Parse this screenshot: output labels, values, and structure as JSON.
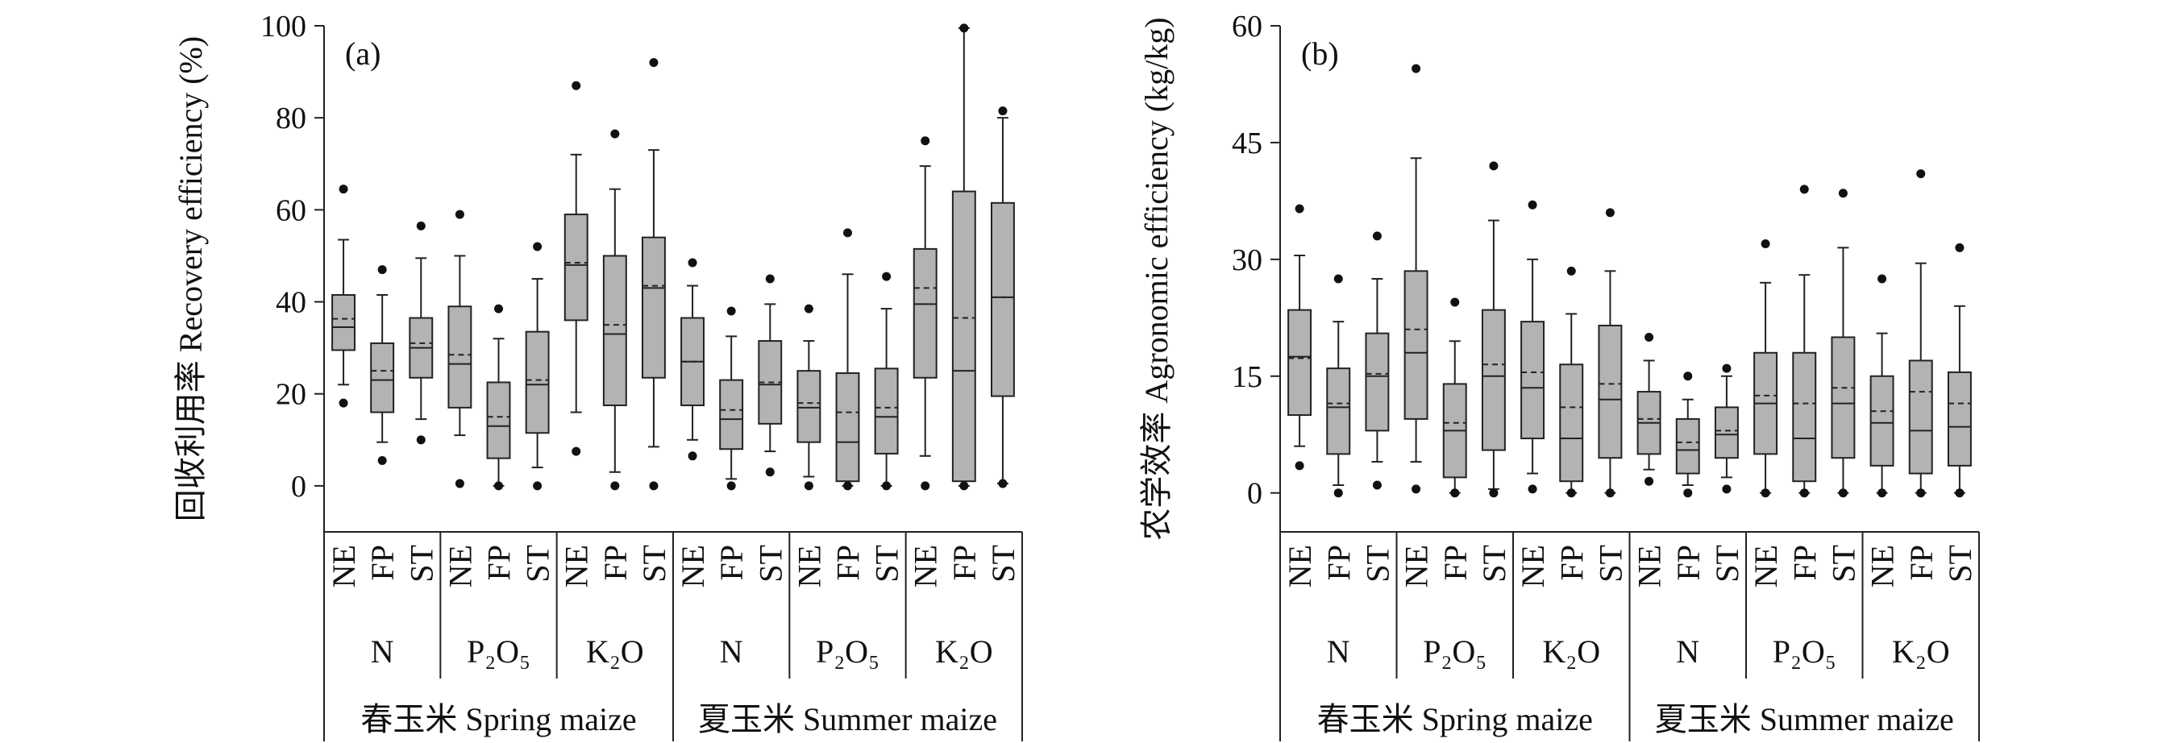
{
  "chart_data": [
    {
      "type": "box",
      "panel_label": "(a)",
      "ylabel": "回收利用率 Recovery efficiency (%)",
      "ylim": [
        -10,
        100
      ],
      "yticks": [
        0,
        20,
        40,
        60,
        80,
        100
      ],
      "treatments": [
        "NE",
        "FP",
        "ST"
      ],
      "groups": [
        "N",
        "P₂O₅",
        "K₂O",
        "N",
        "P₂O₅",
        "K₂O"
      ],
      "crops": [
        {
          "label": "春玉米 Spring maize",
          "span": [
            0,
            2
          ]
        },
        {
          "label": "夏玉米 Summer maize",
          "span": [
            3,
            5
          ]
        }
      ],
      "boxes": [
        {
          "group": 0,
          "treatment": "NE",
          "whisker_low": 22,
          "q1": 29.5,
          "median": 34.5,
          "mean": 36.3,
          "q3": 41.5,
          "whisker_high": 53.5,
          "outliers": [
            18,
            64.5
          ]
        },
        {
          "group": 0,
          "treatment": "FP",
          "whisker_low": 9.5,
          "q1": 16,
          "median": 23,
          "mean": 25,
          "q3": 31,
          "whisker_high": 41.5,
          "outliers": [
            5.5,
            47
          ]
        },
        {
          "group": 0,
          "treatment": "ST",
          "whisker_low": 14.5,
          "q1": 23.5,
          "median": 30,
          "mean": 31,
          "q3": 36.5,
          "whisker_high": 49.5,
          "outliers": [
            10,
            56.5
          ]
        },
        {
          "group": 1,
          "treatment": "NE",
          "whisker_low": 11,
          "q1": 17,
          "median": 26.5,
          "mean": 28.5,
          "q3": 39,
          "whisker_high": 50,
          "outliers": [
            0.5,
            59
          ]
        },
        {
          "group": 1,
          "treatment": "FP",
          "whisker_low": 0,
          "q1": 6,
          "median": 13,
          "mean": 15,
          "q3": 22.5,
          "whisker_high": 32,
          "outliers": [
            0,
            38.5
          ]
        },
        {
          "group": 1,
          "treatment": "ST",
          "whisker_low": 4,
          "q1": 11.5,
          "median": 22,
          "mean": 23,
          "q3": 33.5,
          "whisker_high": 45,
          "outliers": [
            0,
            52
          ]
        },
        {
          "group": 2,
          "treatment": "NE",
          "whisker_low": 16,
          "q1": 36,
          "median": 48,
          "mean": 48.5,
          "q3": 59,
          "whisker_high": 72,
          "outliers": [
            7.5,
            87
          ]
        },
        {
          "group": 2,
          "treatment": "FP",
          "whisker_low": 3,
          "q1": 17.5,
          "median": 33,
          "mean": 35,
          "q3": 50,
          "whisker_high": 64.5,
          "outliers": [
            0,
            76.5
          ]
        },
        {
          "group": 2,
          "treatment": "ST",
          "whisker_low": 8.5,
          "q1": 23.5,
          "median": 43,
          "mean": 43.5,
          "q3": 54,
          "whisker_high": 73,
          "outliers": [
            0,
            92
          ]
        },
        {
          "group": 3,
          "treatment": "NE",
          "whisker_low": 10,
          "q1": 17.5,
          "median": 27,
          "mean": 27,
          "q3": 36.5,
          "whisker_high": 43.5,
          "outliers": [
            6.5,
            48.5
          ]
        },
        {
          "group": 3,
          "treatment": "FP",
          "whisker_low": 1.5,
          "q1": 8,
          "median": 14.5,
          "mean": 16.5,
          "q3": 23,
          "whisker_high": 32.5,
          "outliers": [
            0,
            38
          ]
        },
        {
          "group": 3,
          "treatment": "ST",
          "whisker_low": 7.5,
          "q1": 13.5,
          "median": 22,
          "mean": 22.5,
          "q3": 31.5,
          "whisker_high": 39.5,
          "outliers": [
            3,
            45
          ]
        },
        {
          "group": 4,
          "treatment": "NE",
          "whisker_low": 2,
          "q1": 9.5,
          "median": 17,
          "mean": 18,
          "q3": 25,
          "whisker_high": 31.5,
          "outliers": [
            0,
            38.5
          ]
        },
        {
          "group": 4,
          "treatment": "FP",
          "whisker_low": 0,
          "q1": 1,
          "median": 9.5,
          "mean": 16,
          "q3": 24.5,
          "whisker_high": 46,
          "outliers": [
            0,
            55
          ]
        },
        {
          "group": 4,
          "treatment": "ST",
          "whisker_low": 0,
          "q1": 7,
          "median": 15,
          "mean": 17,
          "q3": 25.5,
          "whisker_high": 38.5,
          "outliers": [
            0,
            45.5
          ]
        },
        {
          "group": 5,
          "treatment": "NE",
          "whisker_low": 6.5,
          "q1": 23.5,
          "median": 39.5,
          "mean": 43,
          "q3": 51.5,
          "whisker_high": 69.5,
          "outliers": [
            0,
            75
          ]
        },
        {
          "group": 5,
          "treatment": "FP",
          "whisker_low": 0,
          "q1": 1,
          "median": 25,
          "mean": 36.5,
          "q3": 64,
          "whisker_high": 99.5,
          "outliers": [
            0,
            99.5
          ]
        },
        {
          "group": 5,
          "treatment": "ST",
          "whisker_low": 0.5,
          "q1": 19.5,
          "median": 41,
          "mean": 41,
          "q3": 61.5,
          "whisker_high": 80,
          "outliers": [
            0.5,
            81.5
          ]
        }
      ]
    },
    {
      "type": "box",
      "panel_label": "(b)",
      "ylabel": "农学效率 Agronomic efficiency (kg/kg)",
      "ylim": [
        -5,
        60
      ],
      "yticks": [
        0,
        15,
        30,
        45,
        60
      ],
      "treatments": [
        "NE",
        "FP",
        "ST"
      ],
      "groups": [
        "N",
        "P₂O₅",
        "K₂O",
        "N",
        "P₂O₅",
        "K₂O"
      ],
      "crops": [
        {
          "label": "春玉米 Spring maize",
          "span": [
            0,
            2
          ]
        },
        {
          "label": "夏玉米 Summer maize",
          "span": [
            3,
            5
          ]
        }
      ],
      "boxes": [
        {
          "group": 0,
          "treatment": "NE",
          "whisker_low": 6,
          "q1": 10,
          "median": 17.5,
          "mean": 17.3,
          "q3": 23.5,
          "whisker_high": 30.5,
          "outliers": [
            3.5,
            36.5
          ]
        },
        {
          "group": 0,
          "treatment": "FP",
          "whisker_low": 1,
          "q1": 5,
          "median": 11,
          "mean": 11.5,
          "q3": 16,
          "whisker_high": 22,
          "outliers": [
            0,
            27.5
          ]
        },
        {
          "group": 0,
          "treatment": "ST",
          "whisker_low": 4,
          "q1": 8,
          "median": 15,
          "mean": 15.3,
          "q3": 20.5,
          "whisker_high": 27.5,
          "outliers": [
            1,
            33
          ]
        },
        {
          "group": 1,
          "treatment": "NE",
          "whisker_low": 4,
          "q1": 9.5,
          "median": 18,
          "mean": 21,
          "q3": 28.5,
          "whisker_high": 43,
          "outliers": [
            0.5,
            54.5
          ]
        },
        {
          "group": 1,
          "treatment": "FP",
          "whisker_low": 0,
          "q1": 2,
          "median": 8,
          "mean": 9,
          "q3": 14,
          "whisker_high": 19.5,
          "outliers": [
            0,
            24.5
          ]
        },
        {
          "group": 1,
          "treatment": "ST",
          "whisker_low": 0.5,
          "q1": 5.5,
          "median": 15,
          "mean": 16.5,
          "q3": 23.5,
          "whisker_high": 35,
          "outliers": [
            0,
            42
          ]
        },
        {
          "group": 2,
          "treatment": "NE",
          "whisker_low": 2.5,
          "q1": 7,
          "median": 13.5,
          "mean": 15.5,
          "q3": 22,
          "whisker_high": 30,
          "outliers": [
            0.5,
            37
          ]
        },
        {
          "group": 2,
          "treatment": "FP",
          "whisker_low": 0,
          "q1": 1.5,
          "median": 7,
          "mean": 11,
          "q3": 16.5,
          "whisker_high": 23,
          "outliers": [
            0,
            28.5
          ]
        },
        {
          "group": 2,
          "treatment": "ST",
          "whisker_low": 0,
          "q1": 4.5,
          "median": 12,
          "mean": 14,
          "q3": 21.5,
          "whisker_high": 28.5,
          "outliers": [
            0,
            36
          ]
        },
        {
          "group": 3,
          "treatment": "NE",
          "whisker_low": 3,
          "q1": 5,
          "median": 9,
          "mean": 9.5,
          "q3": 13,
          "whisker_high": 17,
          "outliers": [
            1.5,
            20
          ]
        },
        {
          "group": 3,
          "treatment": "FP",
          "whisker_low": 1,
          "q1": 2.5,
          "median": 5.5,
          "mean": 6.5,
          "q3": 9.5,
          "whisker_high": 12,
          "outliers": [
            0,
            15
          ]
        },
        {
          "group": 3,
          "treatment": "ST",
          "whisker_low": 2,
          "q1": 4.5,
          "median": 7.5,
          "mean": 8,
          "q3": 11,
          "whisker_high": 15,
          "outliers": [
            0.5,
            16
          ]
        },
        {
          "group": 4,
          "treatment": "NE",
          "whisker_low": 0,
          "q1": 5,
          "median": 11.5,
          "mean": 12.5,
          "q3": 18,
          "whisker_high": 27,
          "outliers": [
            0,
            32
          ]
        },
        {
          "group": 4,
          "treatment": "FP",
          "whisker_low": 0,
          "q1": 1.5,
          "median": 7,
          "mean": 11.5,
          "q3": 18,
          "whisker_high": 28,
          "outliers": [
            0,
            39
          ]
        },
        {
          "group": 4,
          "treatment": "ST",
          "whisker_low": 0,
          "q1": 4.5,
          "median": 11.5,
          "mean": 13.5,
          "q3": 20,
          "whisker_high": 31.5,
          "outliers": [
            0,
            38.5
          ]
        },
        {
          "group": 5,
          "treatment": "NE",
          "whisker_low": 0,
          "q1": 3.5,
          "median": 9,
          "mean": 10.5,
          "q3": 15,
          "whisker_high": 20.5,
          "outliers": [
            0,
            27.5
          ]
        },
        {
          "group": 5,
          "treatment": "FP",
          "whisker_low": 0,
          "q1": 2.5,
          "median": 8,
          "mean": 13,
          "q3": 17,
          "whisker_high": 29.5,
          "outliers": [
            0,
            41
          ]
        },
        {
          "group": 5,
          "treatment": "ST",
          "whisker_low": 0,
          "q1": 3.5,
          "median": 8.5,
          "mean": 11.5,
          "q3": 15.5,
          "whisker_high": 24,
          "outliers": [
            0,
            31.5
          ]
        }
      ]
    }
  ],
  "style": {
    "box_fill": "#b3b3b3",
    "stroke": "#222222",
    "point": "#111111"
  }
}
